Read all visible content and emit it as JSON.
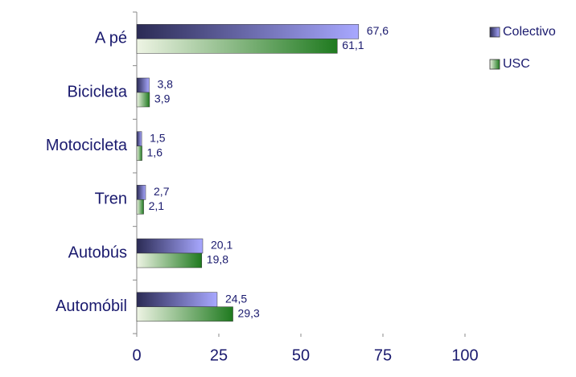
{
  "chart_data": {
    "type": "barh",
    "categories": [
      "A pé",
      "Bicicleta",
      "Motocicleta",
      "Tren",
      "Autobús",
      "Automóbil"
    ],
    "series": [
      {
        "name": "Colectivo",
        "color": "#8f8ff0",
        "values": [
          67.6,
          3.8,
          1.5,
          2.7,
          20.1,
          24.5
        ],
        "value_labels": [
          "67,6",
          "3,8",
          "1,5",
          "2,7",
          "20,1",
          "24,5"
        ]
      },
      {
        "name": "USC",
        "color": "#2f8a2f",
        "values": [
          61.1,
          3.9,
          1.6,
          2.1,
          19.8,
          29.3
        ],
        "value_labels": [
          "61,1",
          "3,9",
          "1,6",
          "2,1",
          "19,8",
          "29,3"
        ]
      }
    ],
    "xlim": [
      0,
      100
    ],
    "xticks": [
      0,
      25,
      50,
      75,
      100
    ],
    "legend": "right"
  }
}
